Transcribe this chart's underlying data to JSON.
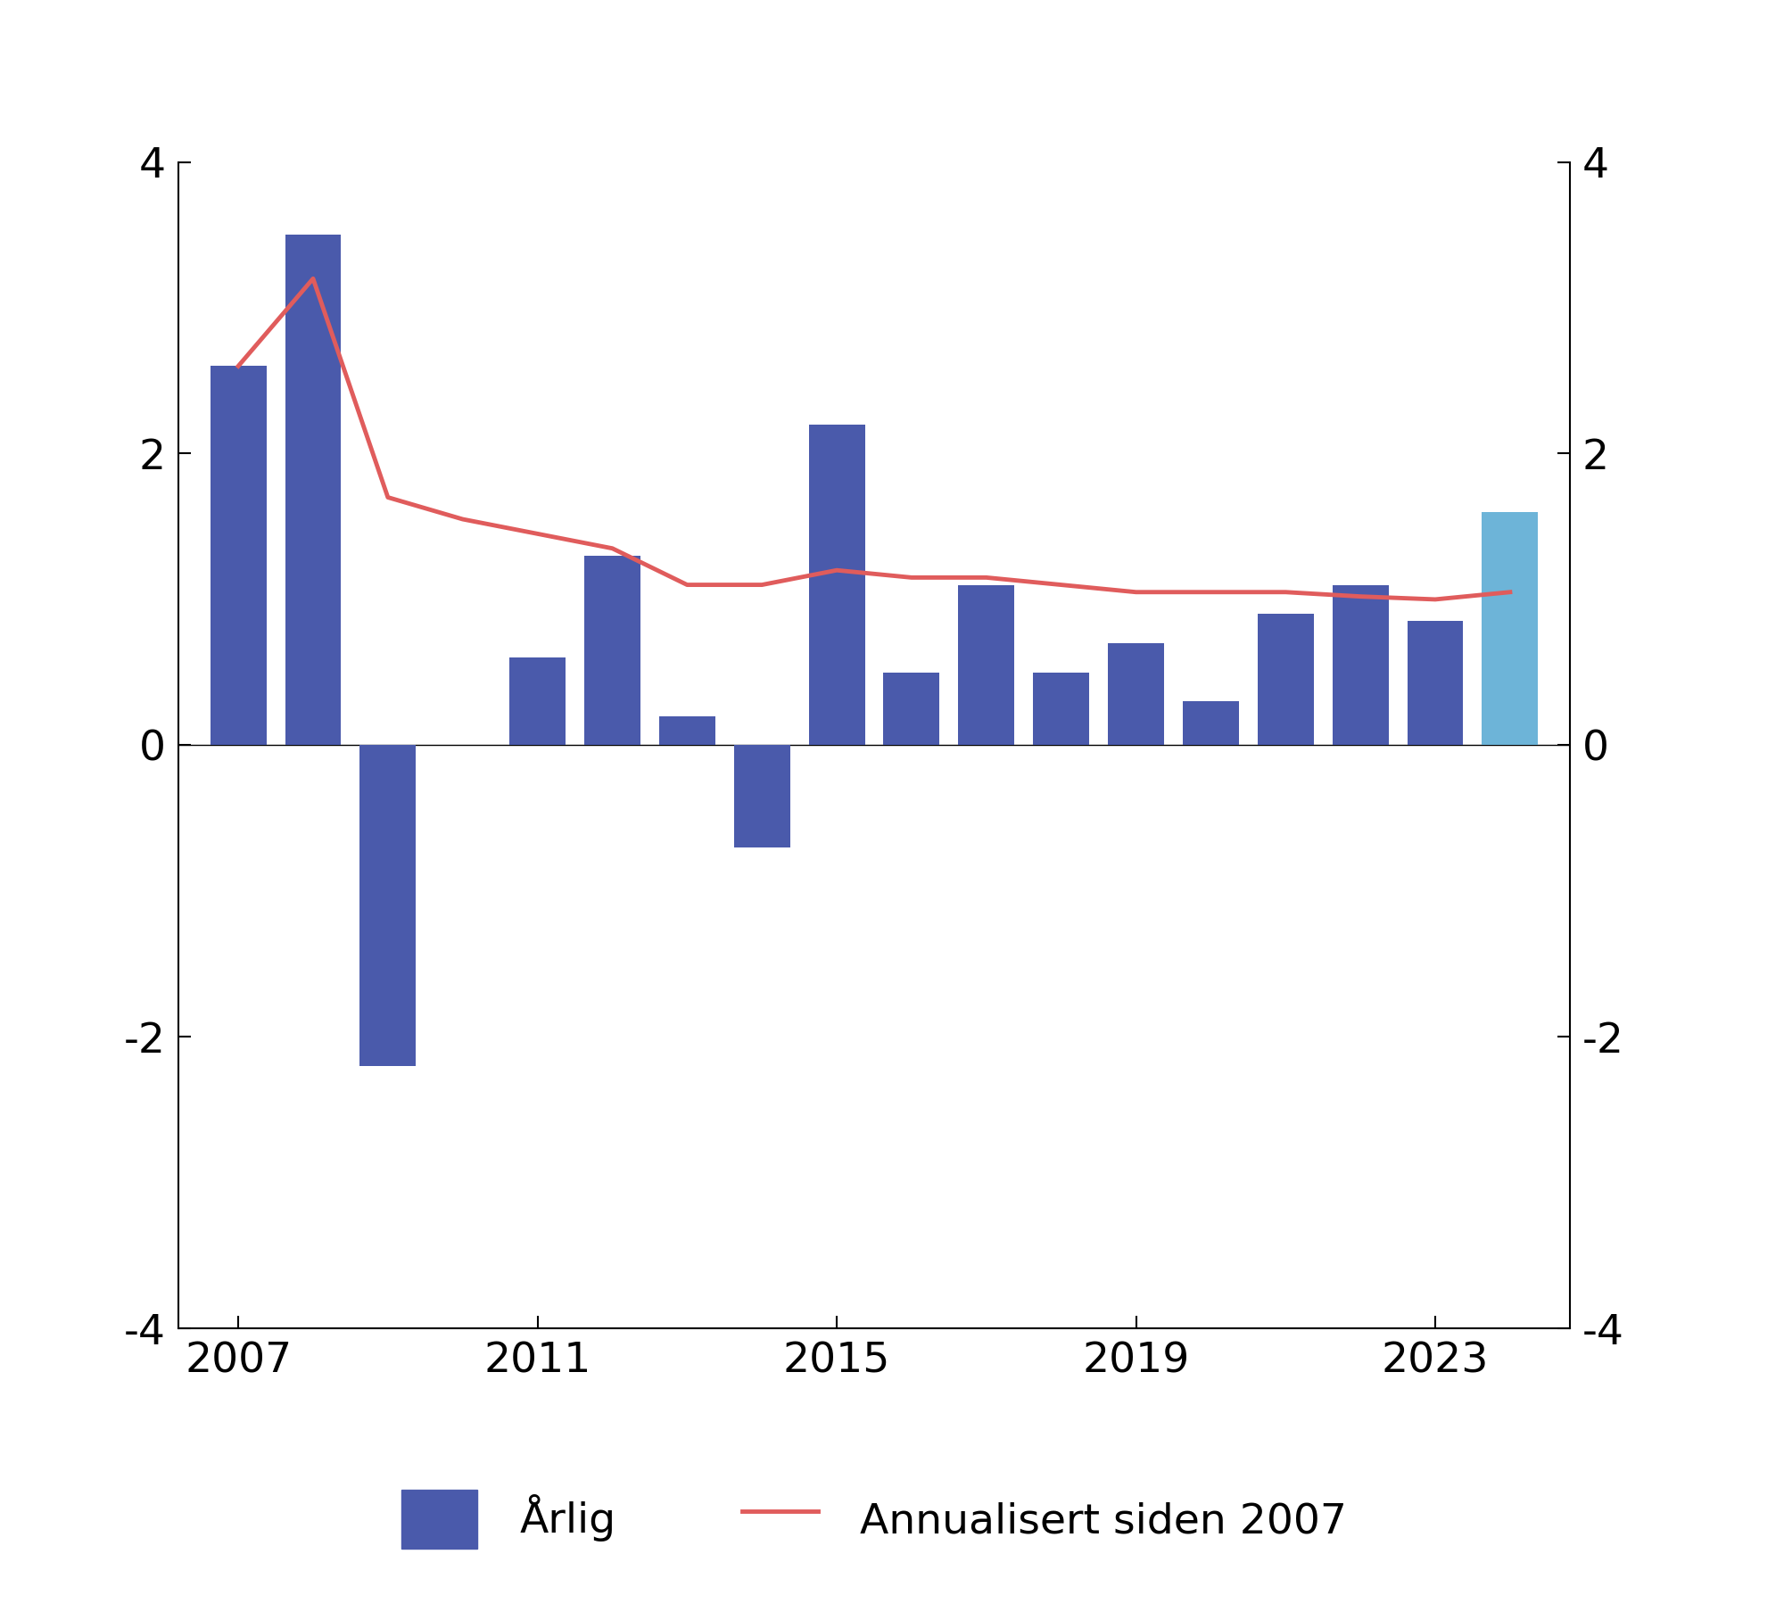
{
  "years": [
    2007,
    2008,
    2009,
    2010,
    2011,
    2012,
    2013,
    2014,
    2015,
    2016,
    2017,
    2018,
    2019,
    2020,
    2021,
    2022,
    2023,
    2024
  ],
  "bar_values": [
    2.6,
    3.5,
    -2.2,
    0.0,
    0.6,
    1.3,
    0.2,
    -0.7,
    2.2,
    0.5,
    1.1,
    0.5,
    0.7,
    0.3,
    0.9,
    1.1,
    0.85,
    1.6
  ],
  "bar_colors": [
    "#4a5aab",
    "#4a5aab",
    "#4a5aab",
    "#4a5aab",
    "#4a5aab",
    "#4a5aab",
    "#4a5aab",
    "#4a5aab",
    "#4a5aab",
    "#4a5aab",
    "#4a5aab",
    "#4a5aab",
    "#4a5aab",
    "#4a5aab",
    "#4a5aab",
    "#4a5aab",
    "#4a5aab",
    "#6db4d8"
  ],
  "line_values": [
    2.6,
    3.2,
    1.7,
    1.55,
    1.45,
    1.35,
    1.1,
    1.1,
    1.2,
    1.15,
    1.15,
    1.1,
    1.05,
    1.05,
    1.05,
    1.02,
    1.0,
    1.05
  ],
  "line_color": "#e05c5c",
  "bar_color_dark": "#4a5aab",
  "bar_color_light": "#6db4d8",
  "ylim": [
    -4,
    4
  ],
  "yticks": [
    -4,
    -2,
    0,
    2,
    4
  ],
  "xlabel_ticks": [
    2007,
    2011,
    2015,
    2019,
    2023
  ],
  "legend_bar_label": "Årlig",
  "legend_line_label": "Annualisert siden 2007",
  "background_color": "#ffffff",
  "bar_width": 0.75,
  "spine_color": "#000000",
  "xlim_left": 2006.2,
  "xlim_right": 2024.8
}
